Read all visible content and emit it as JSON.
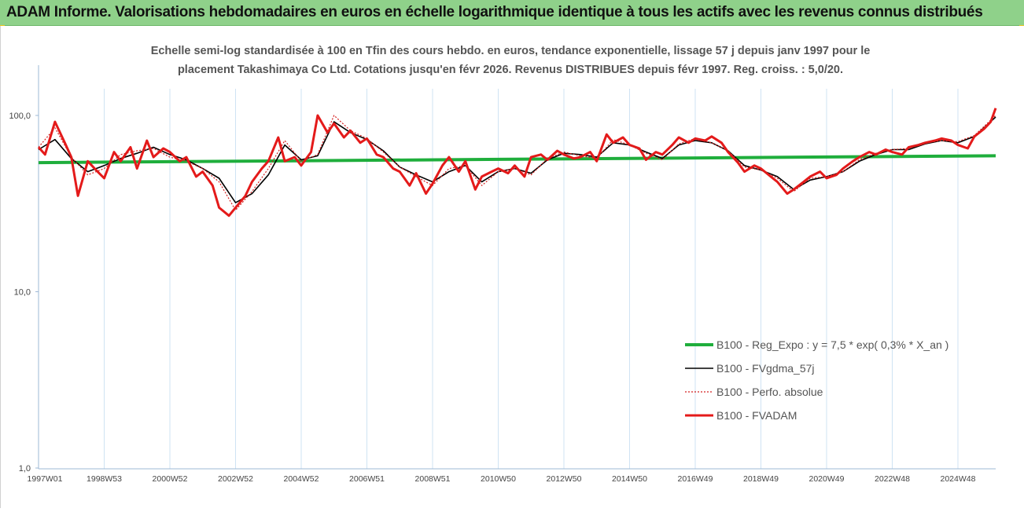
{
  "banner": {
    "title": "ADAM Informe. Valorisations hebdomadaires en euros en échelle logarithmique identique à tous les actifs avec les revenus connus distribués",
    "bg_color": "#8fd18a",
    "corner_color": "#f0c419"
  },
  "chart_data": {
    "type": "line",
    "title_line1": "Echelle semi-log standardisée à 100 en Tfin des cours hebdo. en euros, tendance exponentielle, lissage 57 j depuis janv 1997 pour le",
    "title_line2": "placement Takashimaya Co Ltd. Cotations jusqu'en févr 2026. Revenus DISTRIBUES depuis févr 1997. Reg. croiss. : 5,0/20.",
    "y_scale": "log",
    "ylim": [
      1,
      100
    ],
    "y_ticks": [
      "1,0",
      "10,0",
      "100,0"
    ],
    "y_tick_values": [
      1,
      10,
      100
    ],
    "x_tick_labels": [
      "1997W01",
      "1998W53",
      "2000W52",
      "2002W52",
      "2004W52",
      "2006W51",
      "2008W51",
      "2010W50",
      "2012W50",
      "2014W50",
      "2016W49",
      "2018W49",
      "2020W49",
      "2022W48",
      "2024W48"
    ],
    "x_tick_years": [
      1997.0,
      1999.0,
      2001.0,
      2003.0,
      2005.0,
      2007.0,
      2009.0,
      2011.0,
      2013.0,
      2015.0,
      2017.0,
      2019.0,
      2021.0,
      2023.0,
      2025.0
    ],
    "xlim": [
      1997.0,
      2026.15
    ],
    "grid": "vertical",
    "grid_color": "#cfe3f3",
    "legend_position": "bottom-right",
    "series": [
      {
        "name": "B100 - Reg_Expo : y = 7,5 * exp( 0,3% *  X_an )",
        "color": "#1fae3c",
        "style": "solid",
        "x": [
          1997.0,
          2026.15
        ],
        "y": [
          54,
          59
        ]
      },
      {
        "name": "B100 - FVgdma_57j",
        "color": "#000000",
        "style": "solid",
        "x": [
          1997.0,
          1997.5,
          1998.0,
          1998.5,
          1999.0,
          1999.5,
          2000.0,
          2000.5,
          2001.0,
          2001.5,
          2002.0,
          2002.5,
          2003.0,
          2003.5,
          2004.0,
          2004.5,
          2005.0,
          2005.5,
          2006.0,
          2006.5,
          2007.0,
          2007.5,
          2008.0,
          2008.5,
          2009.0,
          2009.5,
          2010.0,
          2010.5,
          2011.0,
          2011.5,
          2012.0,
          2012.5,
          2013.0,
          2013.5,
          2014.0,
          2014.5,
          2015.0,
          2015.5,
          2016.0,
          2016.5,
          2017.0,
          2017.5,
          2018.0,
          2018.5,
          2019.0,
          2019.5,
          2020.0,
          2020.5,
          2021.0,
          2021.5,
          2022.0,
          2022.5,
          2023.0,
          2023.5,
          2024.0,
          2024.5,
          2025.0,
          2025.5,
          2026.15
        ],
        "y": [
          64,
          73,
          57,
          48,
          52,
          57,
          61,
          66,
          60,
          56,
          50,
          44,
          32,
          36,
          46,
          68,
          56,
          59,
          92,
          80,
          73,
          63,
          51,
          46,
          42,
          48,
          52,
          42,
          48,
          50,
          47,
          56,
          61,
          60,
          58,
          70,
          68,
          62,
          57,
          68,
          72,
          70,
          63,
          52,
          49,
          45,
          38,
          43,
          45,
          48,
          55,
          60,
          64,
          64,
          69,
          72,
          70,
          76,
          98
        ]
      },
      {
        "name": "B100 - Perfo. absolue",
        "color": "#d42020",
        "style": "dotted",
        "x": [
          1997.0,
          1997.5,
          1998.0,
          1998.5,
          1999.0,
          1999.5,
          2000.0,
          2000.5,
          2001.0,
          2001.5,
          2002.0,
          2002.5,
          2003.0,
          2003.5,
          2004.0,
          2004.5,
          2005.0,
          2005.5,
          2006.0,
          2006.5,
          2007.0,
          2007.5,
          2008.0,
          2008.5,
          2009.0,
          2009.5,
          2010.0,
          2010.5,
          2011.0,
          2011.5,
          2012.0,
          2012.5,
          2013.0,
          2013.5,
          2014.0,
          2014.5,
          2015.0,
          2015.5,
          2016.0,
          2016.5,
          2017.0,
          2017.5,
          2018.0,
          2018.5,
          2019.0,
          2019.5,
          2020.0,
          2020.5,
          2021.0,
          2021.5,
          2022.0,
          2022.5,
          2023.0,
          2023.5,
          2024.0,
          2024.5,
          2025.0,
          2025.5,
          2026.15
        ],
        "y": [
          66,
          85,
          58,
          46,
          50,
          60,
          63,
          65,
          58,
          55,
          50,
          42,
          29,
          37,
          50,
          72,
          55,
          60,
          100,
          82,
          74,
          62,
          51,
          45,
          40,
          50,
          52,
          40,
          48,
          50,
          46,
          57,
          62,
          59,
          57,
          73,
          68,
          61,
          56,
          69,
          74,
          70,
          63,
          51,
          49,
          44,
          37,
          44,
          45,
          48,
          56,
          61,
          64,
          65,
          70,
          72,
          71,
          77,
          100
        ]
      },
      {
        "name": "B100 - FVADAM",
        "color": "#e41a1a",
        "style": "solid",
        "x": [
          1997.0,
          1997.2,
          1997.5,
          1997.8,
          1998.0,
          1998.2,
          1998.5,
          1998.8,
          1999.0,
          1999.3,
          1999.5,
          1999.8,
          2000.0,
          2000.3,
          2000.5,
          2000.8,
          2001.0,
          2001.3,
          2001.5,
          2001.8,
          2002.0,
          2002.3,
          2002.5,
          2002.8,
          2003.0,
          2003.3,
          2003.5,
          2003.8,
          2004.0,
          2004.3,
          2004.5,
          2004.8,
          2005.0,
          2005.3,
          2005.5,
          2005.8,
          2006.0,
          2006.3,
          2006.5,
          2006.8,
          2007.0,
          2007.3,
          2007.5,
          2007.8,
          2008.0,
          2008.3,
          2008.5,
          2008.8,
          2009.0,
          2009.3,
          2009.5,
          2009.8,
          2010.0,
          2010.3,
          2010.5,
          2010.8,
          2011.0,
          2011.3,
          2011.5,
          2011.8,
          2012.0,
          2012.3,
          2012.5,
          2012.8,
          2013.0,
          2013.3,
          2013.5,
          2013.8,
          2014.0,
          2014.3,
          2014.5,
          2014.8,
          2015.0,
          2015.3,
          2015.5,
          2015.8,
          2016.0,
          2016.3,
          2016.5,
          2016.8,
          2017.0,
          2017.3,
          2017.5,
          2017.8,
          2018.0,
          2018.3,
          2018.5,
          2018.8,
          2019.0,
          2019.3,
          2019.5,
          2019.8,
          2020.0,
          2020.3,
          2020.5,
          2020.8,
          2021.0,
          2021.3,
          2021.5,
          2021.8,
          2022.0,
          2022.3,
          2022.5,
          2022.8,
          2023.0,
          2023.3,
          2023.5,
          2023.8,
          2024.0,
          2024.3,
          2024.5,
          2024.8,
          2025.0,
          2025.3,
          2025.5,
          2025.8,
          2026.0,
          2026.15
        ],
        "y": [
          66,
          60,
          92,
          70,
          58,
          35,
          55,
          48,
          44,
          62,
          55,
          66,
          50,
          72,
          58,
          65,
          62,
          55,
          58,
          45,
          48,
          40,
          30,
          27,
          30,
          35,
          42,
          50,
          55,
          75,
          55,
          58,
          52,
          62,
          100,
          80,
          90,
          75,
          82,
          70,
          74,
          60,
          58,
          50,
          48,
          40,
          47,
          36,
          41,
          52,
          58,
          48,
          55,
          38,
          45,
          48,
          50,
          47,
          52,
          45,
          58,
          60,
          56,
          63,
          60,
          57,
          58,
          62,
          55,
          78,
          70,
          75,
          68,
          65,
          56,
          62,
          60,
          68,
          75,
          70,
          74,
          72,
          76,
          70,
          62,
          54,
          48,
          52,
          50,
          45,
          42,
          36,
          38,
          42,
          45,
          48,
          44,
          46,
          50,
          55,
          58,
          62,
          60,
          64,
          62,
          60,
          66,
          68,
          70,
          72,
          74,
          72,
          68,
          65,
          76,
          84,
          92,
          110
        ]
      }
    ]
  }
}
